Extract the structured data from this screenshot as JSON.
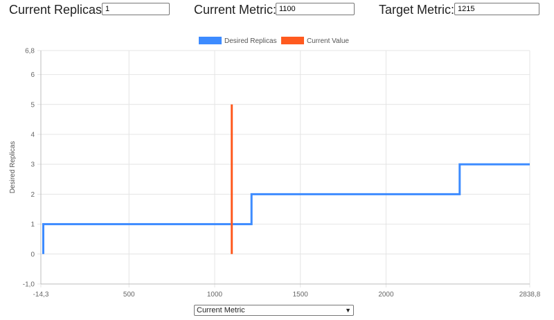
{
  "controls": {
    "replicas_label": "Current Replicas:",
    "replicas_value": "1",
    "metric_label": "Current Metric:",
    "metric_value": "1100",
    "target_label": "Target Metric:",
    "target_value": "1215"
  },
  "axis_select": {
    "selected": "Current Metric",
    "arrow_icon": "chevron-down-icon"
  },
  "chart_data": {
    "type": "line",
    "title": "",
    "xlabel": "",
    "ylabel": "Desired Replicas",
    "xlim": [
      -14.3,
      2838.8
    ],
    "ylim": [
      -1.0,
      6.8
    ],
    "x_ticks": [
      -14.3,
      500,
      1000,
      1500,
      2000,
      2838.8
    ],
    "x_tick_labels": [
      "-14,3",
      "500",
      "1000",
      "1500",
      "2000",
      "2838,8"
    ],
    "y_ticks": [
      -1.0,
      0,
      1,
      2,
      3,
      4,
      5,
      6,
      6.8
    ],
    "y_tick_labels": [
      "-1,0",
      "0",
      "1",
      "2",
      "3",
      "4",
      "5",
      "6",
      "6,8"
    ],
    "grid": true,
    "legend_position": "top-center",
    "series": [
      {
        "name": "Desired Replicas",
        "color": "#3d8bff",
        "step": true,
        "points": [
          [
            0,
            0
          ],
          [
            0,
            1
          ],
          [
            1215,
            1
          ],
          [
            1215,
            2
          ],
          [
            2430,
            2
          ],
          [
            2430,
            3
          ],
          [
            2838.8,
            3
          ]
        ]
      },
      {
        "name": "Current Value",
        "color": "#ff5a1f",
        "points": [
          [
            1100,
            0
          ],
          [
            1100,
            5
          ]
        ]
      }
    ]
  }
}
